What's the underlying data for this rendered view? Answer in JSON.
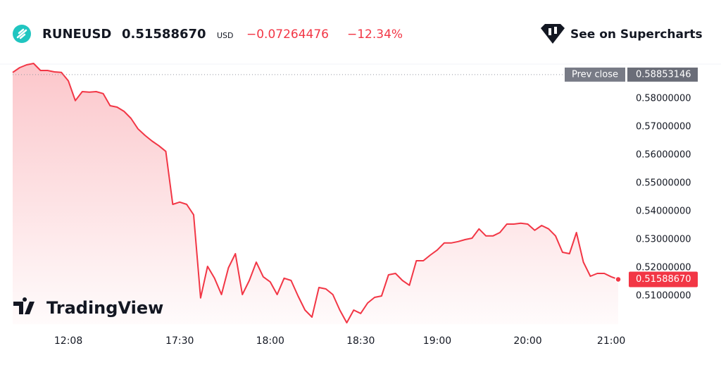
{
  "header": {
    "symbol": "RUNEUSD",
    "price": "0.51588670",
    "currency": "USD",
    "change": "−0.07264476",
    "change_pct": "−12.34%",
    "cta": "See on Supercharts"
  },
  "brand": "TradingView",
  "chart_data": {
    "type": "area",
    "color": "#f23645",
    "values": [
      0.5893,
      0.591,
      0.592,
      0.5925,
      0.59,
      0.59,
      0.5895,
      0.5893,
      0.5863,
      0.5793,
      0.5825,
      0.5823,
      0.5825,
      0.5818,
      0.5775,
      0.577,
      0.5755,
      0.573,
      0.5693,
      0.567,
      0.565,
      0.5633,
      0.5613,
      0.5425,
      0.5433,
      0.5425,
      0.5388,
      0.5093,
      0.5205,
      0.5163,
      0.5105,
      0.52,
      0.525,
      0.5105,
      0.5155,
      0.522,
      0.5168,
      0.515,
      0.5105,
      0.5163,
      0.5155,
      0.51,
      0.505,
      0.5025,
      0.513,
      0.5125,
      0.5105,
      0.505,
      0.5005,
      0.505,
      0.5038,
      0.5075,
      0.5095,
      0.51,
      0.5175,
      0.518,
      0.5155,
      0.5138,
      0.5225,
      0.5225,
      0.5245,
      0.5263,
      0.5288,
      0.5288,
      0.5293,
      0.53,
      0.5305,
      0.5338,
      0.5313,
      0.5313,
      0.5325,
      0.5355,
      0.5355,
      0.5358,
      0.5355,
      0.5333,
      0.535,
      0.5338,
      0.5313,
      0.5255,
      0.525,
      0.5325,
      0.522,
      0.517,
      0.518,
      0.518,
      0.5168,
      0.5158867
    ],
    "ylim": [
      0.5,
      0.594
    ],
    "yticks": [
      {
        "value": 0.51,
        "label": "0.51000000"
      },
      {
        "value": 0.52,
        "label": "0.52000000"
      },
      {
        "value": 0.53,
        "label": "0.53000000"
      },
      {
        "value": 0.54,
        "label": "0.54000000"
      },
      {
        "value": 0.55,
        "label": "0.55000000"
      },
      {
        "value": 0.56,
        "label": "0.56000000"
      },
      {
        "value": 0.57,
        "label": "0.57000000"
      },
      {
        "value": 0.58,
        "label": "0.58000000"
      }
    ],
    "xticks": [
      {
        "value": 8,
        "label": "12:08"
      },
      {
        "value": 24,
        "label": "17:30"
      },
      {
        "value": 37,
        "label": "18:00"
      },
      {
        "value": 50,
        "label": "18:30"
      },
      {
        "value": 61,
        "label": "19:00"
      },
      {
        "value": 74,
        "label": "20:00"
      },
      {
        "value": 86,
        "label": "21:00"
      }
    ],
    "prev_close": {
      "name": "Prev close",
      "value": 0.58853146,
      "label": "0.58853146"
    }
  }
}
